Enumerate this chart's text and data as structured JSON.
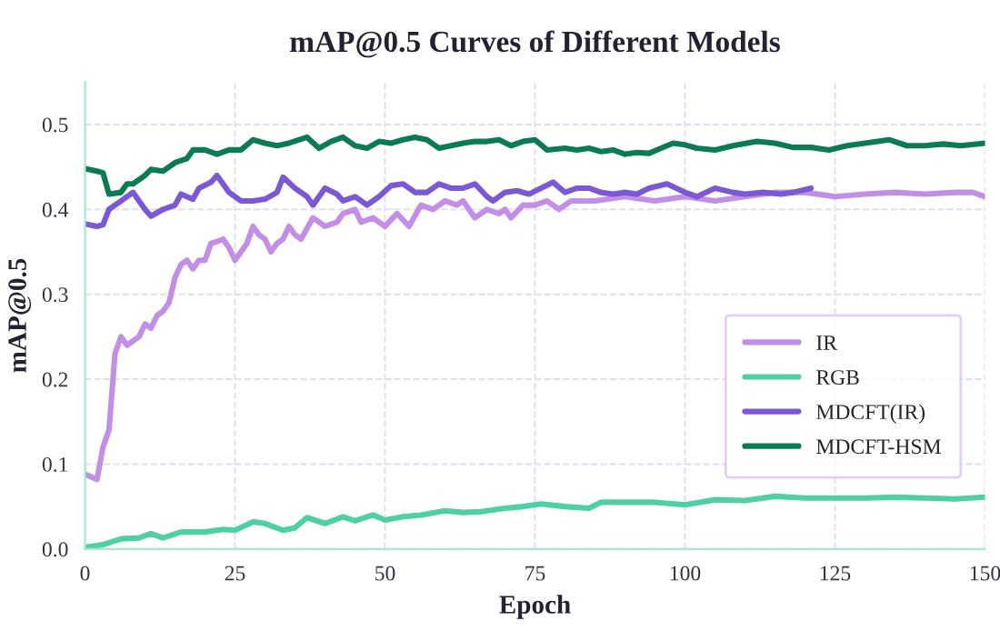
{
  "chart_data": {
    "type": "line",
    "title": "mAP@0.5 Curves of Different Models",
    "xlabel": "Epoch",
    "ylabel": "mAP@0.5",
    "xlim": [
      0,
      150
    ],
    "xticks": [
      0,
      25,
      50,
      75,
      100,
      125,
      150
    ],
    "ylim": [
      0,
      0.55
    ],
    "yticks": [
      {
        "value": 0,
        "label": "0.0"
      },
      0.1,
      0.2,
      0.3,
      0.4,
      0.5
    ],
    "grid": true,
    "legend": "lower right",
    "line_style": "solid",
    "series": [
      {
        "name": "IR",
        "color": "#c28ee6",
        "x": [
          0,
          1,
          2,
          3,
          4,
          5,
          6,
          7,
          8,
          9,
          10,
          11,
          12,
          13,
          14,
          15,
          16,
          17,
          18,
          19,
          20,
          21,
          22,
          23,
          24,
          25,
          26,
          27,
          28,
          29,
          30,
          31,
          32,
          33,
          34,
          35,
          36,
          38,
          40,
          42,
          43,
          45,
          46,
          48,
          50,
          52,
          54,
          56,
          58,
          60,
          62,
          63,
          65,
          67,
          69,
          70,
          71,
          73,
          75,
          77,
          79,
          81,
          85,
          90,
          95,
          100,
          105,
          110,
          115,
          120,
          125,
          130,
          135,
          140,
          145,
          148,
          150
        ],
        "values": [
          0.088,
          0.085,
          0.082,
          0.12,
          0.14,
          0.23,
          0.25,
          0.24,
          0.245,
          0.25,
          0.265,
          0.26,
          0.275,
          0.28,
          0.29,
          0.32,
          0.335,
          0.34,
          0.33,
          0.34,
          0.34,
          0.36,
          0.362,
          0.365,
          0.355,
          0.34,
          0.35,
          0.36,
          0.38,
          0.37,
          0.365,
          0.35,
          0.36,
          0.365,
          0.38,
          0.37,
          0.365,
          0.39,
          0.38,
          0.385,
          0.395,
          0.4,
          0.385,
          0.39,
          0.38,
          0.395,
          0.38,
          0.405,
          0.4,
          0.41,
          0.405,
          0.41,
          0.39,
          0.4,
          0.395,
          0.4,
          0.39,
          0.405,
          0.405,
          0.41,
          0.4,
          0.41,
          0.41,
          0.415,
          0.41,
          0.415,
          0.41,
          0.415,
          0.42,
          0.42,
          0.415,
          0.418,
          0.42,
          0.418,
          0.42,
          0.42,
          0.415
        ]
      },
      {
        "name": "RGB",
        "color": "#4ecfa4",
        "x": [
          0,
          3,
          6,
          9,
          11,
          13,
          16,
          20,
          23,
          25,
          28,
          30,
          33,
          35,
          37,
          40,
          43,
          45,
          48,
          50,
          53,
          56,
          60,
          63,
          66,
          70,
          73,
          76,
          80,
          84,
          86,
          90,
          95,
          100,
          105,
          110,
          115,
          120,
          125,
          130,
          135,
          140,
          145,
          150
        ],
        "values": [
          0.002,
          0.005,
          0.012,
          0.013,
          0.018,
          0.013,
          0.02,
          0.02,
          0.023,
          0.022,
          0.032,
          0.03,
          0.022,
          0.025,
          0.037,
          0.03,
          0.038,
          0.033,
          0.04,
          0.034,
          0.038,
          0.04,
          0.045,
          0.043,
          0.044,
          0.048,
          0.05,
          0.053,
          0.05,
          0.048,
          0.055,
          0.055,
          0.055,
          0.052,
          0.058,
          0.057,
          0.062,
          0.06,
          0.06,
          0.06,
          0.061,
          0.06,
          0.059,
          0.061
        ]
      },
      {
        "name": "MDCFT(IR)",
        "color": "#7b58d4",
        "x": [
          0,
          2,
          3,
          4,
          6,
          8,
          10,
          11,
          13,
          15,
          16,
          18,
          19,
          21,
          22,
          24,
          26,
          28,
          30,
          32,
          33,
          35,
          37,
          38,
          40,
          42,
          43,
          45,
          47,
          49,
          51,
          53,
          55,
          57,
          59,
          61,
          63,
          65,
          67,
          68,
          70,
          72,
          74,
          76,
          78,
          80,
          82,
          84,
          86,
          88,
          90,
          92,
          94,
          97,
          100,
          102,
          105,
          108,
          110,
          113,
          116,
          118,
          121
        ],
        "values": [
          0.383,
          0.38,
          0.382,
          0.4,
          0.41,
          0.42,
          0.4,
          0.392,
          0.4,
          0.405,
          0.418,
          0.412,
          0.425,
          0.432,
          0.44,
          0.42,
          0.41,
          0.41,
          0.412,
          0.42,
          0.438,
          0.425,
          0.415,
          0.405,
          0.425,
          0.418,
          0.41,
          0.415,
          0.405,
          0.415,
          0.428,
          0.43,
          0.42,
          0.42,
          0.43,
          0.425,
          0.425,
          0.43,
          0.415,
          0.41,
          0.42,
          0.422,
          0.418,
          0.425,
          0.432,
          0.42,
          0.425,
          0.425,
          0.42,
          0.418,
          0.42,
          0.418,
          0.425,
          0.43,
          0.42,
          0.415,
          0.425,
          0.42,
          0.418,
          0.42,
          0.418,
          0.42,
          0.425
        ]
      },
      {
        "name": "MDCFT-HSM",
        "color": "#0b7a55",
        "x": [
          0,
          2,
          3,
          4,
          6,
          7,
          8,
          10,
          11,
          13,
          15,
          17,
          18,
          20,
          22,
          24,
          26,
          28,
          30,
          32,
          34,
          37,
          39,
          41,
          43,
          45,
          47,
          49,
          51,
          53,
          55,
          57,
          59,
          61,
          63,
          65,
          67,
          69,
          71,
          73,
          75,
          77,
          80,
          82,
          84,
          86,
          88,
          90,
          92,
          94,
          96,
          98,
          100,
          102,
          105,
          108,
          112,
          115,
          118,
          121,
          124,
          127,
          130,
          134,
          137,
          140,
          143,
          146,
          150
        ],
        "values": [
          0.448,
          0.445,
          0.443,
          0.418,
          0.42,
          0.43,
          0.43,
          0.44,
          0.447,
          0.445,
          0.455,
          0.46,
          0.47,
          0.47,
          0.465,
          0.47,
          0.47,
          0.482,
          0.478,
          0.475,
          0.478,
          0.485,
          0.472,
          0.48,
          0.485,
          0.475,
          0.472,
          0.48,
          0.478,
          0.482,
          0.485,
          0.482,
          0.472,
          0.475,
          0.478,
          0.48,
          0.48,
          0.482,
          0.475,
          0.48,
          0.482,
          0.47,
          0.472,
          0.47,
          0.472,
          0.468,
          0.47,
          0.465,
          0.467,
          0.466,
          0.472,
          0.478,
          0.476,
          0.472,
          0.47,
          0.475,
          0.48,
          0.478,
          0.473,
          0.473,
          0.47,
          0.475,
          0.478,
          0.482,
          0.475,
          0.475,
          0.477,
          0.475,
          0.478
        ]
      }
    ]
  }
}
